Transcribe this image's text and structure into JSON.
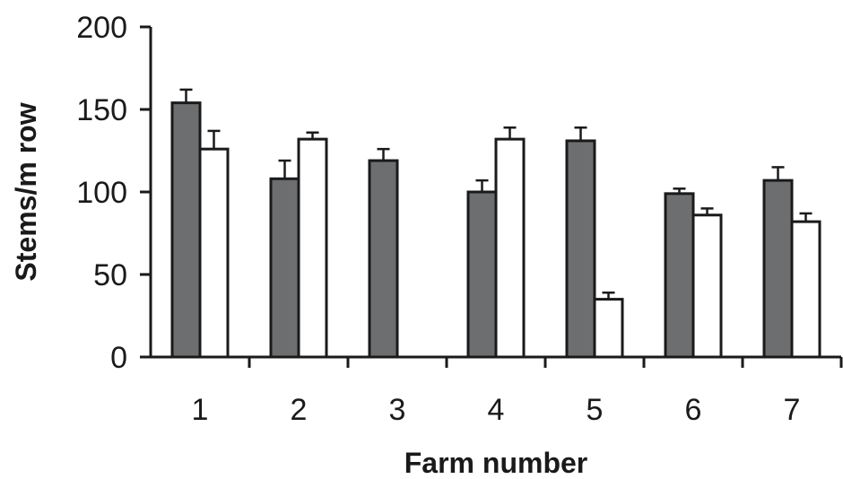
{
  "chart_data": {
    "type": "bar",
    "categories": [
      "1",
      "2",
      "3",
      "4",
      "5",
      "6",
      "7"
    ],
    "series": [
      {
        "color": "#6d6e70",
        "values": [
          154,
          108,
          119,
          100,
          131,
          99,
          107
        ],
        "errors": [
          8,
          11,
          7,
          7,
          8,
          3,
          8
        ]
      },
      {
        "color": "#ffffff",
        "values": [
          126,
          132,
          0,
          132,
          35,
          86,
          82
        ],
        "errors": [
          11,
          4,
          0,
          7,
          4,
          4,
          5
        ]
      }
    ],
    "xlabel": "Farm number",
    "ylabel": "Stems/m row",
    "ylim": [
      0,
      200
    ],
    "yticks": [
      0,
      50,
      100,
      150,
      200
    ],
    "grid": false
  }
}
